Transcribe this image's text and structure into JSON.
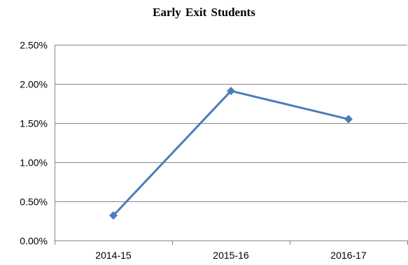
{
  "chart_data": {
    "type": "line",
    "title": "Early Exit Students",
    "xlabel": "",
    "ylabel": "",
    "categories": [
      "2014-15",
      "2015-16",
      "2016-17"
    ],
    "series": [
      {
        "values": [
          0.32,
          1.91,
          1.55
        ],
        "color": "#4a7ebb",
        "marker": "diamond"
      }
    ],
    "ylim": [
      0,
      2.5
    ],
    "y_ticks": [
      0,
      0.5,
      1.0,
      1.5,
      2.0,
      2.5
    ],
    "y_tick_labels": [
      "0.00%",
      "0.50%",
      "1.00%",
      "1.50%",
      "2.00%",
      "2.50%"
    ],
    "grid": true,
    "legend": "none"
  }
}
